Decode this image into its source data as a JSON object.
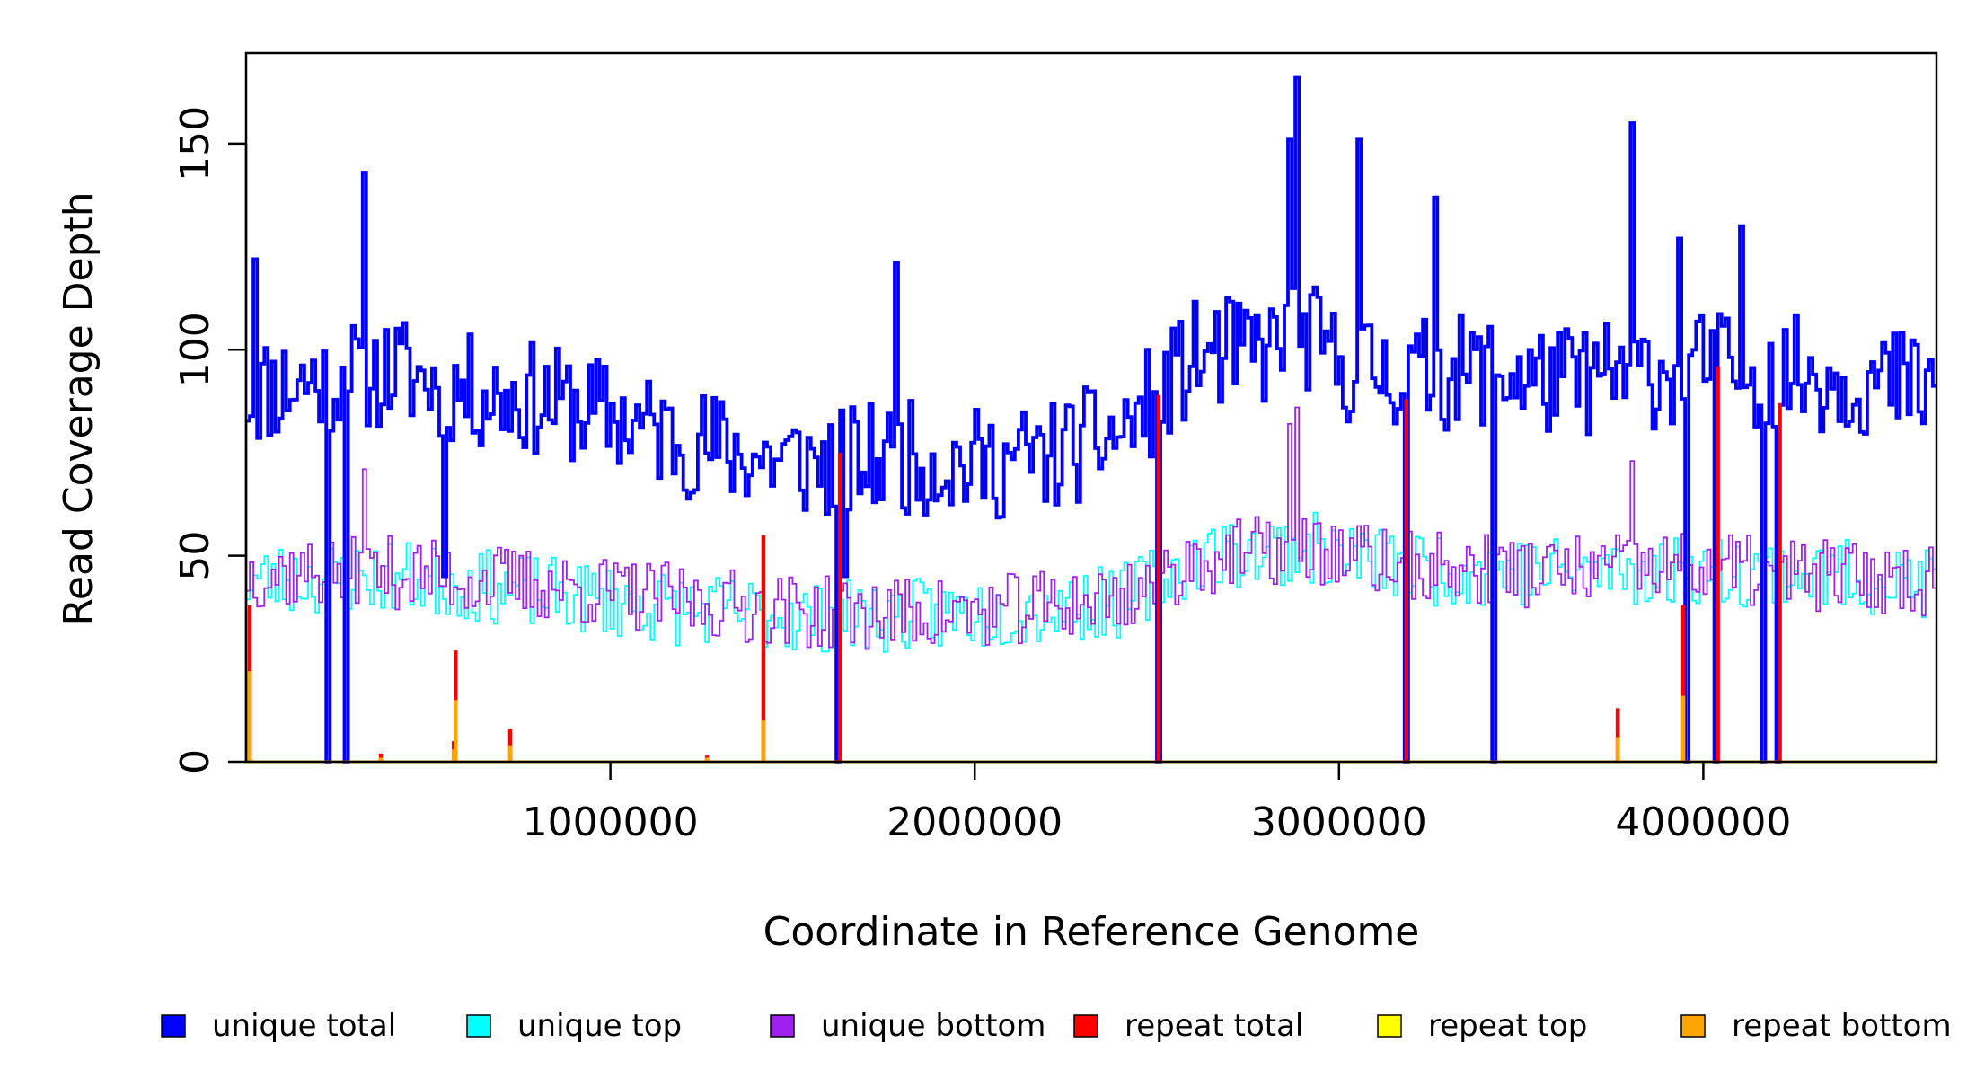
{
  "chart_data": {
    "type": "line",
    "title": "",
    "xlabel": "Coordinate in Reference Genome",
    "ylabel": "Read Coverage Depth",
    "xlim": [
      0,
      4640000
    ],
    "ylim": [
      0,
      172
    ],
    "x_ticks": [
      {
        "value": 1000000,
        "label": "1000000"
      },
      {
        "value": 2000000,
        "label": "2000000"
      },
      {
        "value": 3000000,
        "label": "3000000"
      },
      {
        "value": 4000000,
        "label": "4000000"
      }
    ],
    "y_ticks": [
      {
        "value": 0,
        "label": "0"
      },
      {
        "value": 50,
        "label": "50"
      },
      {
        "value": 100,
        "label": "100"
      },
      {
        "value": 150,
        "label": "150"
      }
    ],
    "grid": false,
    "legend_position": "bottom",
    "step_width": 10000,
    "series": [
      {
        "name": "unique total",
        "color": "#0000ff",
        "style": "step",
        "baseline": {
          "knots": [
            [
              0,
              90
            ],
            [
              200000,
              93
            ],
            [
              400000,
              95
            ],
            [
              600000,
              90
            ],
            [
              800000,
              88
            ],
            [
              1000000,
              84
            ],
            [
              1200000,
              78
            ],
            [
              1400000,
              74
            ],
            [
              1600000,
              72
            ],
            [
              1800000,
              74
            ],
            [
              2000000,
              72
            ],
            [
              2200000,
              74
            ],
            [
              2400000,
              80
            ],
            [
              2600000,
              98
            ],
            [
              2800000,
              100
            ],
            [
              2900000,
              104
            ],
            [
              3000000,
              96
            ],
            [
              3200000,
              94
            ],
            [
              3400000,
              95
            ],
            [
              3600000,
              92
            ],
            [
              3800000,
              94
            ],
            [
              4000000,
              96
            ],
            [
              4200000,
              95
            ],
            [
              4400000,
              93
            ],
            [
              4640000,
              90
            ]
          ],
          "amplitude": 14,
          "seed": 11
        },
        "peaks": [
          [
            20000,
            122
          ],
          [
            320000,
            143
          ],
          [
            1780000,
            121
          ],
          [
            2860000,
            151
          ],
          [
            2880000,
            166
          ],
          [
            3050000,
            151
          ],
          [
            3260000,
            137
          ],
          [
            3800000,
            155
          ],
          [
            3930000,
            127
          ],
          [
            4100000,
            130
          ]
        ],
        "drops": [
          [
            220000,
            0
          ],
          [
            270000,
            0
          ],
          [
            540000,
            45
          ],
          [
            1620000,
            0
          ],
          [
            1640000,
            45
          ],
          [
            2500000,
            0
          ],
          [
            3180000,
            0
          ],
          [
            3420000,
            0
          ],
          [
            3950000,
            0
          ],
          [
            4030000,
            0
          ],
          [
            4160000,
            0
          ],
          [
            4200000,
            0
          ]
        ]
      },
      {
        "name": "unique top",
        "color": "#00ffff",
        "style": "step",
        "baseline": {
          "knots": [
            [
              0,
              44
            ],
            [
              400000,
              45
            ],
            [
              800000,
              41
            ],
            [
              1200000,
              37
            ],
            [
              1600000,
              35
            ],
            [
              2000000,
              36
            ],
            [
              2400000,
              39
            ],
            [
              2600000,
              50
            ],
            [
              2900000,
              52
            ],
            [
              3200000,
              47
            ],
            [
              3600000,
              46
            ],
            [
              4000000,
              47
            ],
            [
              4400000,
              45
            ],
            [
              4640000,
              43
            ]
          ],
          "amplitude": 9,
          "seed": 23
        },
        "peaks": [],
        "drops": [
          [
            220000,
            0
          ],
          [
            270000,
            0
          ],
          [
            1620000,
            0
          ],
          [
            2500000,
            0
          ],
          [
            3180000,
            0
          ],
          [
            3420000,
            0
          ],
          [
            4030000,
            0
          ],
          [
            4160000,
            0
          ],
          [
            4200000,
            0
          ]
        ]
      },
      {
        "name": "unique bottom",
        "color": "#a020f0",
        "style": "step",
        "baseline": {
          "knots": [
            [
              0,
              46
            ],
            [
              400000,
              46
            ],
            [
              800000,
              43
            ],
            [
              1200000,
              39
            ],
            [
              1600000,
              36
            ],
            [
              2000000,
              36
            ],
            [
              2400000,
              40
            ],
            [
              2600000,
              49
            ],
            [
              2900000,
              52
            ],
            [
              3200000,
              47
            ],
            [
              3600000,
              46
            ],
            [
              4000000,
              47
            ],
            [
              4400000,
              45
            ],
            [
              4640000,
              44
            ]
          ],
          "amplitude": 9,
          "seed": 37
        },
        "peaks": [
          [
            320000,
            71
          ],
          [
            2860000,
            82
          ],
          [
            2880000,
            86
          ],
          [
            3800000,
            73
          ]
        ],
        "drops": [
          [
            220000,
            0
          ],
          [
            270000,
            0
          ],
          [
            1620000,
            0
          ],
          [
            2500000,
            0
          ],
          [
            3180000,
            0
          ],
          [
            3420000,
            0
          ],
          [
            4030000,
            0
          ],
          [
            4160000,
            0
          ],
          [
            4200000,
            0
          ]
        ]
      },
      {
        "name": "repeat total",
        "color": "#ff0000",
        "style": "spikes",
        "points": [
          [
            10000,
            38
          ],
          [
            370000,
            2
          ],
          [
            570000,
            5
          ],
          [
            575000,
            27
          ],
          [
            725000,
            8
          ],
          [
            1265000,
            1.5
          ],
          [
            1420000,
            55
          ],
          [
            1630000,
            75
          ],
          [
            2505000,
            89
          ],
          [
            3185000,
            88
          ],
          [
            3765000,
            13
          ],
          [
            3945000,
            38
          ],
          [
            4040000,
            96
          ],
          [
            4210000,
            87
          ]
        ]
      },
      {
        "name": "repeat top",
        "color": "#ffff00",
        "style": "spikes",
        "points": []
      },
      {
        "name": "repeat bottom",
        "color": "#ffa500",
        "style": "spikes",
        "points": [
          [
            10000,
            22
          ],
          [
            370000,
            1
          ],
          [
            570000,
            3
          ],
          [
            575000,
            15
          ],
          [
            725000,
            4
          ],
          [
            1265000,
            1
          ],
          [
            1420000,
            10
          ],
          [
            3765000,
            6
          ],
          [
            3945000,
            16
          ]
        ]
      }
    ]
  }
}
